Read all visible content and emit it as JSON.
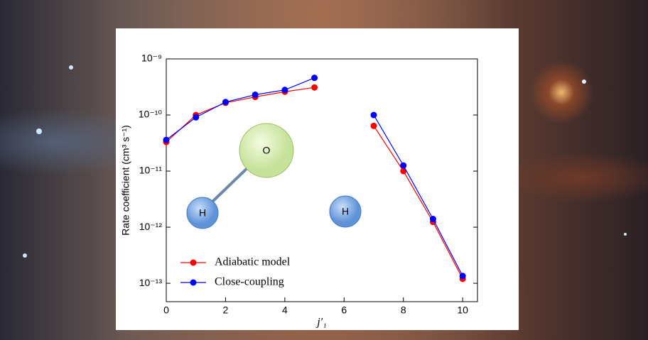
{
  "chart_data": {
    "type": "line",
    "x_label": "j′₁",
    "y_label": "Rate coefficient (cm³ s⁻¹)",
    "x": [
      0,
      1,
      2,
      3,
      4,
      5,
      6,
      7,
      8,
      9,
      10
    ],
    "series": [
      {
        "name": "Adiabatic model",
        "color": "#ff0000",
        "values": [
          3.3e-11,
          1e-10,
          1.65e-10,
          2.1e-10,
          2.6e-10,
          3.1e-10,
          null,
          6.4e-11,
          1e-11,
          1.24e-12,
          1.2e-13
        ]
      },
      {
        "name": "Close-coupling",
        "color": "#0000ff",
        "values": [
          3.6e-11,
          9.1e-11,
          1.7e-10,
          2.3e-10,
          2.8e-10,
          4.6e-10,
          null,
          1e-10,
          1.26e-11,
          1.4e-12,
          1.35e-13
        ]
      }
    ],
    "xlim": [
      0,
      10.5
    ],
    "xticks": [
      0,
      2,
      4,
      6,
      8,
      10
    ],
    "ylim": [
      4.7e-14,
      1e-09
    ],
    "yticks": [
      {
        "value": 1e-09,
        "label": "10⁻⁹"
      },
      {
        "value": 1e-10,
        "label": "10⁻¹⁰"
      },
      {
        "value": 1e-11,
        "label": "10⁻¹¹"
      },
      {
        "value": 1e-12,
        "label": "10⁻¹²"
      },
      {
        "value": 1e-13,
        "label": "10⁻¹³"
      }
    ],
    "log_y": true,
    "legend": "lower left",
    "annotations": [
      "O",
      "H",
      "H"
    ]
  }
}
